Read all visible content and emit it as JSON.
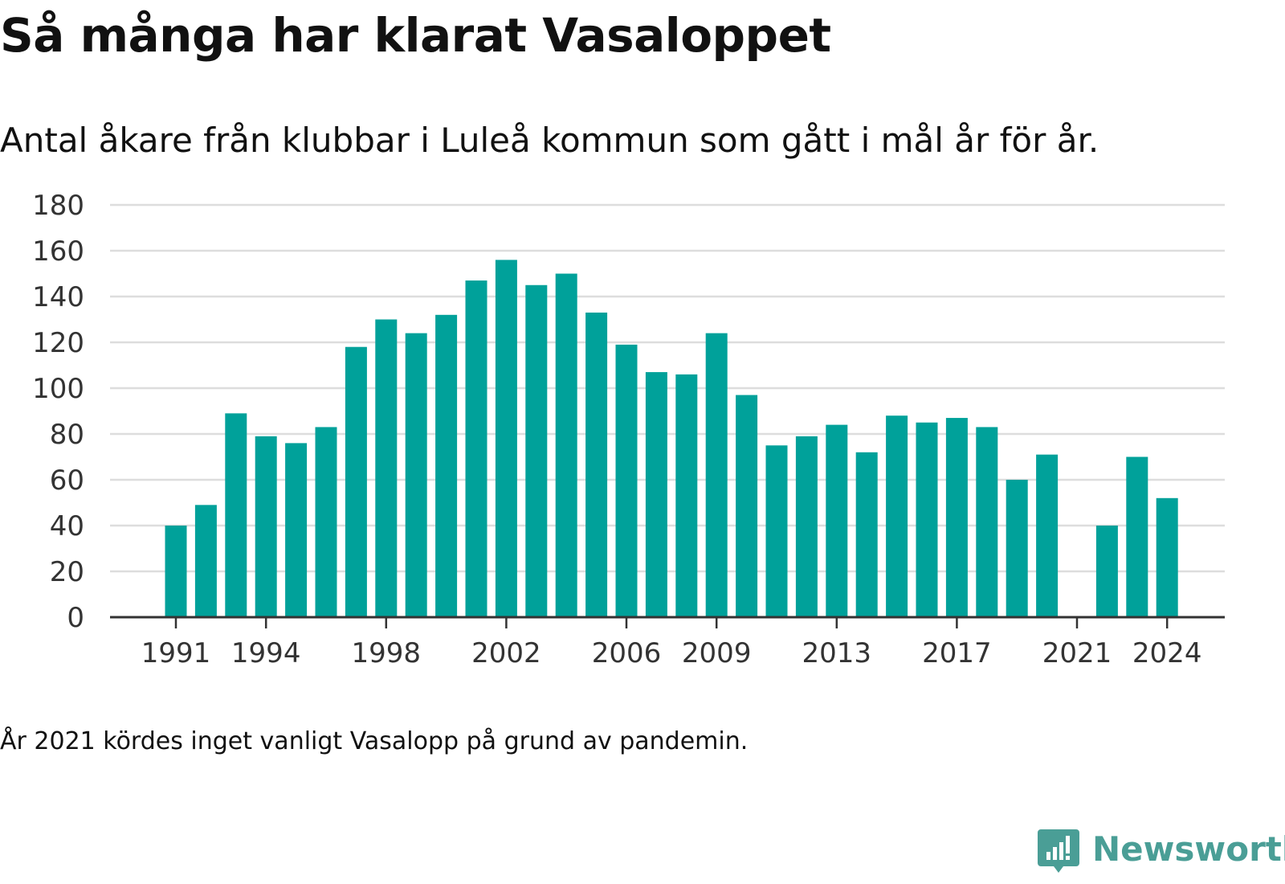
{
  "header": {
    "title": "Så många har klarat Vasaloppet",
    "subtitle": "Antal åkare från klubbar i Luleå kommun som gått i mål år för år."
  },
  "footer": {
    "note": "År 2021 kördes inget vanligt Vasalopp på grund av pandemin.",
    "logo_text": "Newsworthy",
    "logo_icon": "bar-chart-speech-bubble-icon"
  },
  "colors": {
    "bar": "#00a19a",
    "grid": "#dddddd",
    "axis": "#333333",
    "logo": "#4a9e96"
  },
  "chart_data": {
    "type": "bar",
    "title": "Så många har klarat Vasaloppet",
    "subtitle": "Antal åkare från klubbar i Luleå kommun som gått i mål år för år.",
    "xlabel": "",
    "ylabel": "",
    "ylim": [
      0,
      180
    ],
    "yticks": [
      0,
      20,
      40,
      60,
      80,
      100,
      120,
      140,
      160,
      180
    ],
    "xticks": [
      "1991",
      "1994",
      "1998",
      "2002",
      "2006",
      "2009",
      "2013",
      "2017",
      "2021",
      "2024"
    ],
    "grid": true,
    "legend": "none",
    "categories": [
      "1991",
      "1992",
      "1993",
      "1994",
      "1995",
      "1996",
      "1997",
      "1998",
      "1999",
      "2000",
      "2001",
      "2002",
      "2003",
      "2004",
      "2005",
      "2006",
      "2007",
      "2008",
      "2009",
      "2010",
      "2011",
      "2012",
      "2013",
      "2014",
      "2015",
      "2016",
      "2017",
      "2018",
      "2019",
      "2020",
      "2021",
      "2022",
      "2023",
      "2024"
    ],
    "values": [
      40,
      49,
      89,
      79,
      76,
      83,
      118,
      130,
      124,
      132,
      147,
      156,
      145,
      150,
      133,
      119,
      107,
      106,
      124,
      97,
      75,
      79,
      84,
      72,
      88,
      85,
      87,
      83,
      60,
      71,
      null,
      40,
      70,
      52
    ]
  }
}
